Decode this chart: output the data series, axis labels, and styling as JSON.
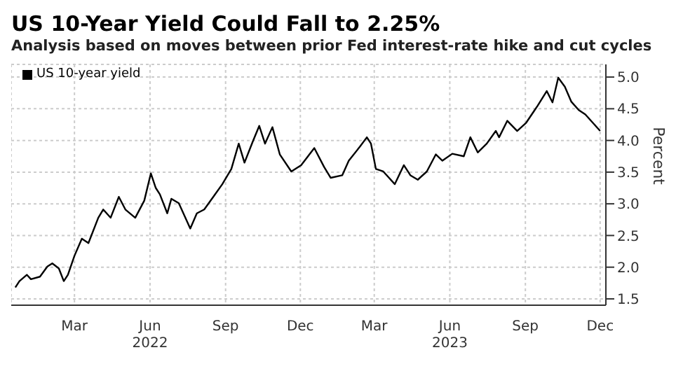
{
  "chart_data": {
    "type": "line",
    "title": "US 10-Year Yield Could Fall to 2.25%",
    "subtitle": "Analysis based on moves between prior Fed interest-rate hike and cut cycles",
    "ylabel": "Percent",
    "series": [
      {
        "name": "US 10-year yield",
        "color": "#000000",
        "x": [
          "2022-01-02",
          "2022-01-07",
          "2022-01-16",
          "2022-01-21",
          "2022-02-01",
          "2022-02-10",
          "2022-02-16",
          "2022-02-24",
          "2022-03-02",
          "2022-03-07",
          "2022-03-15",
          "2022-03-24",
          "2022-04-01",
          "2022-04-13",
          "2022-04-19",
          "2022-04-28",
          "2022-05-08",
          "2022-05-16",
          "2022-05-28",
          "2022-06-08",
          "2022-06-16",
          "2022-06-22",
          "2022-06-27",
          "2022-07-06",
          "2022-07-11",
          "2022-07-20",
          "2022-08-03",
          "2022-08-11",
          "2022-08-20",
          "2022-08-31",
          "2022-09-11",
          "2022-09-22",
          "2022-10-01",
          "2022-10-08",
          "2022-10-18",
          "2022-10-26",
          "2022-11-02",
          "2022-11-11",
          "2022-11-20",
          "2022-12-04",
          "2022-12-16",
          "2023-01-01",
          "2023-01-13",
          "2023-01-21",
          "2023-02-04",
          "2023-02-12",
          "2023-02-26",
          "2023-03-06",
          "2023-03-11",
          "2023-03-17",
          "2023-03-26",
          "2023-04-09",
          "2023-04-20",
          "2023-04-28",
          "2023-05-07",
          "2023-05-18",
          "2023-05-29",
          "2023-06-06",
          "2023-06-18",
          "2023-07-02",
          "2023-07-10",
          "2023-07-19",
          "2023-07-30",
          "2023-08-10",
          "2023-08-14",
          "2023-08-24",
          "2023-09-05",
          "2023-09-16",
          "2023-09-30",
          "2023-10-11",
          "2023-10-18",
          "2023-10-25",
          "2023-11-02",
          "2023-11-10",
          "2023-11-19",
          "2023-11-27",
          "2023-12-06",
          "2023-12-15"
        ],
        "values": [
          1.68,
          1.78,
          1.88,
          1.81,
          1.85,
          2.01,
          2.06,
          1.98,
          1.78,
          1.88,
          2.18,
          2.45,
          2.38,
          2.78,
          2.91,
          2.78,
          3.11,
          2.91,
          2.78,
          3.05,
          3.48,
          3.25,
          3.15,
          2.85,
          3.08,
          3.01,
          2.61,
          2.85,
          2.91,
          3.11,
          3.31,
          3.55,
          3.95,
          3.65,
          3.98,
          4.23,
          3.95,
          4.21,
          3.78,
          3.51,
          3.61,
          3.88,
          3.58,
          3.41,
          3.45,
          3.68,
          3.91,
          4.05,
          3.95,
          3.55,
          3.51,
          3.31,
          3.61,
          3.45,
          3.38,
          3.51,
          3.78,
          3.68,
          3.79,
          3.75,
          4.05,
          3.81,
          3.95,
          4.15,
          4.05,
          4.31,
          4.15,
          4.28,
          4.55,
          4.78,
          4.6,
          4.99,
          4.85,
          4.61,
          4.48,
          4.41,
          4.28,
          4.15
        ]
      }
    ],
    "xlim": [
      "2021-12-28",
      "2023-12-22"
    ],
    "xticks": [
      {
        "value": "2022-03-15",
        "label": "Mar"
      },
      {
        "value": "2022-06-15",
        "label": "Jun\n2022"
      },
      {
        "value": "2022-09-15",
        "label": "Sep"
      },
      {
        "value": "2022-12-15",
        "label": "Dec"
      },
      {
        "value": "2023-03-15",
        "label": "Mar"
      },
      {
        "value": "2023-06-15",
        "label": "Jun\n2023"
      },
      {
        "value": "2023-09-15",
        "label": "Sep"
      },
      {
        "value": "2023-12-15",
        "label": "Dec"
      }
    ],
    "ylim": [
      1.4,
      5.2
    ],
    "yticks": [
      1.5,
      {
        "value": 2,
        "label": "2.0"
      },
      2.5,
      {
        "value": 3,
        "label": "3.0"
      },
      3.5,
      {
        "value": 4,
        "label": "4.0"
      },
      4.5,
      {
        "value": 5,
        "label": "5.0"
      }
    ],
    "grid": true,
    "legend": "top left"
  }
}
